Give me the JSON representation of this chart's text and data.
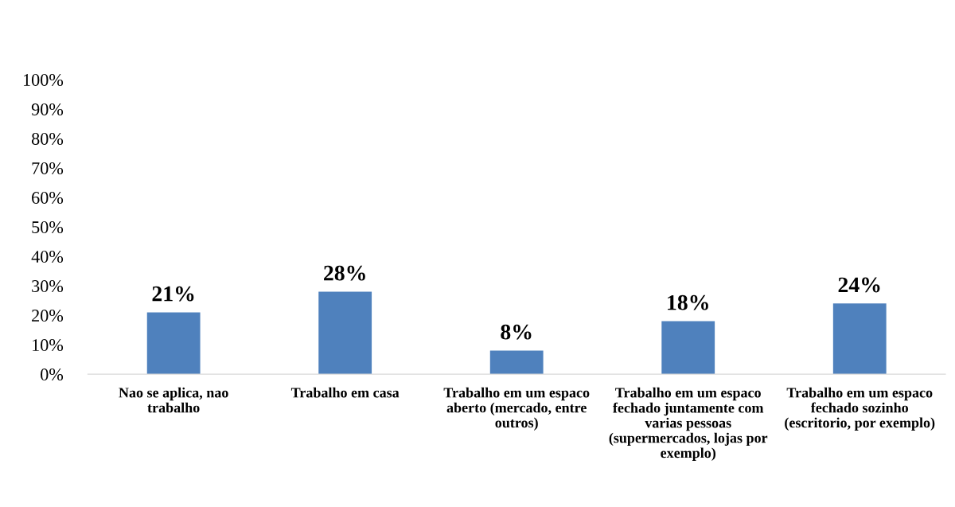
{
  "chart_data": {
    "type": "bar",
    "categories": [
      "Nao se aplica, nao trabalho",
      "Trabalho em casa",
      "Trabalho em um espaco aberto (mercado, entre outros)",
      "Trabalho em um espaco fechado juntamente com varias pessoas (supermercados, lojas por exemplo)",
      "Trabalho em um espaco fechado sozinho (escritorio, por exemplo)"
    ],
    "values": [
      21,
      28,
      8,
      18,
      24
    ],
    "value_labels": [
      "21%",
      "28%",
      "8%",
      "18%",
      "24%"
    ],
    "color": "#4f81bd",
    "ylim": [
      0,
      100
    ],
    "yticks": [
      {
        "value": 0,
        "label": "0%"
      },
      {
        "value": 10,
        "label": "10%"
      },
      {
        "value": 20,
        "label": "20%"
      },
      {
        "value": 30,
        "label": "30%"
      },
      {
        "value": 40,
        "label": "40%"
      },
      {
        "value": 50,
        "label": "50%"
      },
      {
        "value": 60,
        "label": "60%"
      },
      {
        "value": 70,
        "label": "70%"
      },
      {
        "value": 80,
        "label": "80%"
      },
      {
        "value": 90,
        "label": "90%"
      },
      {
        "value": 100,
        "label": "100%"
      }
    ],
    "grid": false,
    "legend": false
  }
}
